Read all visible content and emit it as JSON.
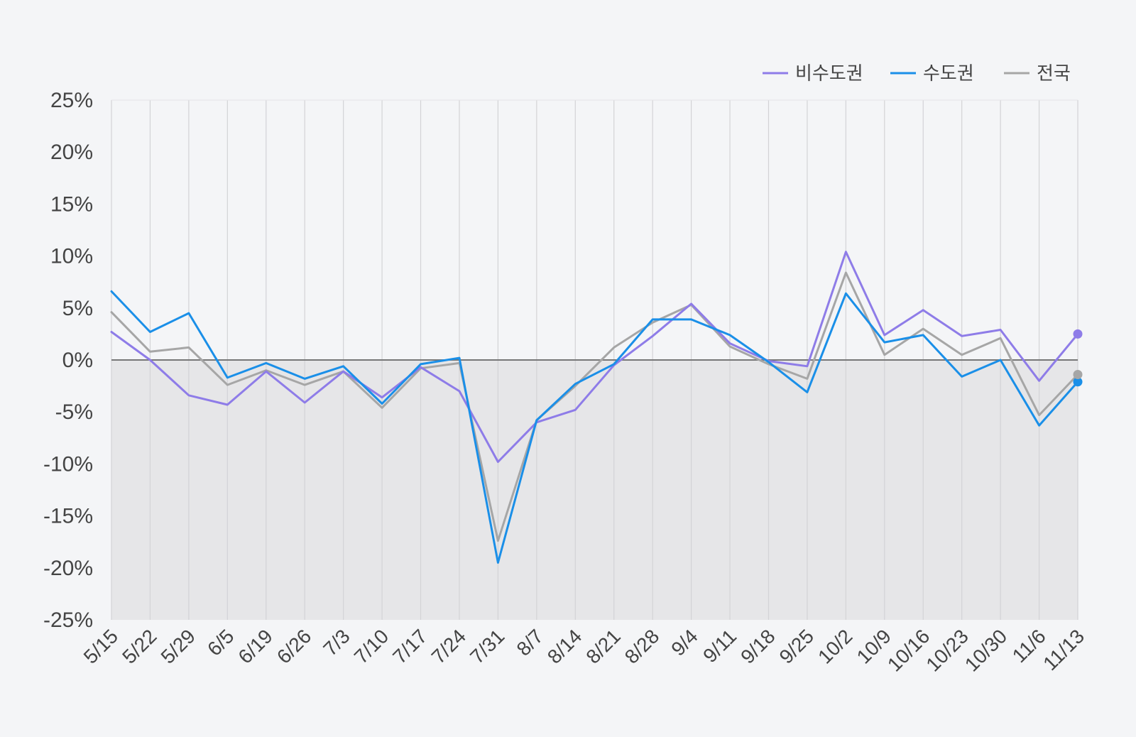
{
  "chart_data": {
    "type": "line",
    "title": "",
    "xlabel": "",
    "ylabel": "",
    "ylim": [
      -25,
      25
    ],
    "yticks": [
      25,
      20,
      15,
      10,
      5,
      0,
      -5,
      -10,
      -15,
      -20,
      -25
    ],
    "ytick_labels": [
      "25%",
      "20%",
      "15%",
      "10%",
      "5%",
      "0%",
      "-5%",
      "-10%",
      "-15%",
      "-20%",
      "-25%"
    ],
    "grid": "vertical",
    "legend_position": "top-right",
    "negative_region_shaded": true,
    "shade_color": "#e6e6e8",
    "x": [
      "5/15",
      "5/22",
      "5/29",
      "6/5",
      "6/19",
      "6/26",
      "7/3",
      "7/10",
      "7/17",
      "7/24",
      "7/31",
      "8/7",
      "8/14",
      "8/21",
      "8/28",
      "9/4",
      "9/11",
      "9/18",
      "9/25",
      "10/2",
      "10/9",
      "10/16",
      "10/23",
      "10/30",
      "11/6",
      "11/13"
    ],
    "series": [
      {
        "name": "비수도권",
        "color": "#8e7ce8",
        "values": [
          2.7,
          0.0,
          -3.4,
          -4.3,
          -1.1,
          -4.1,
          -1.1,
          -3.6,
          -0.7,
          -3.0,
          -9.8,
          -6.0,
          -4.8,
          -0.5,
          2.3,
          5.4,
          1.6,
          -0.1,
          -0.6,
          10.4,
          2.4,
          4.8,
          2.3,
          2.9,
          -2.0,
          2.5
        ]
      },
      {
        "name": "수도권",
        "color": "#1a8fe8",
        "values": [
          6.6,
          2.7,
          4.5,
          -1.7,
          -0.3,
          -1.8,
          -0.6,
          -4.2,
          -0.4,
          0.2,
          -19.5,
          -5.8,
          -2.3,
          -0.4,
          3.9,
          3.9,
          2.4,
          -0.2,
          -3.1,
          6.4,
          1.7,
          2.4,
          -1.6,
          0.0,
          -6.3,
          -2.1
        ]
      },
      {
        "name": "전국",
        "color": "#a6a6a6",
        "values": [
          4.6,
          0.8,
          1.2,
          -2.4,
          -1.0,
          -2.4,
          -1.1,
          -4.6,
          -0.8,
          -0.3,
          -17.4,
          -5.8,
          -2.5,
          1.2,
          3.6,
          5.3,
          1.3,
          -0.4,
          -1.8,
          8.4,
          0.5,
          3.0,
          0.5,
          2.1,
          -5.3,
          -1.4
        ]
      }
    ]
  }
}
